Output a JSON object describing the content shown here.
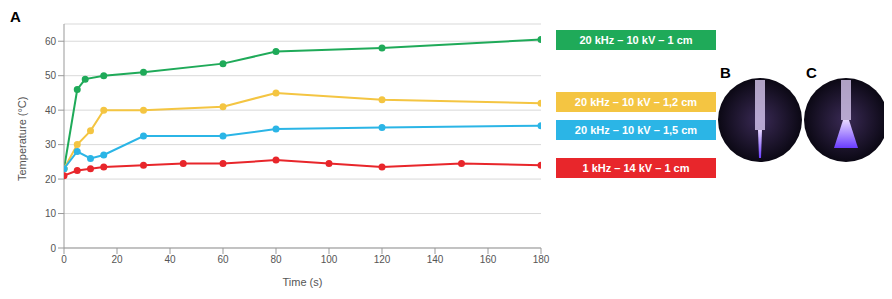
{
  "chart_data": {
    "type": "line",
    "x_label": "Time (s)",
    "y_label": "Temperature (°C)",
    "xlim": [
      0,
      180
    ],
    "xticks": [
      0,
      20,
      40,
      60,
      80,
      100,
      120,
      140,
      160,
      180
    ],
    "ylim": [
      0,
      65
    ],
    "yticks": [
      0,
      10,
      20,
      30,
      40,
      50,
      60
    ],
    "grid": true,
    "legend": "right",
    "marker": "circle",
    "series": [
      {
        "name": "20 kHz – 10 kV – 1 cm",
        "color": "#1faa59",
        "x": [
          0,
          5,
          8,
          15,
          30,
          60,
          80,
          120,
          180
        ],
        "values": [
          23,
          46,
          49,
          50,
          51,
          53.5,
          57,
          58,
          60.5
        ]
      },
      {
        "name": "20 kHz – 10 kV – 1,2 cm",
        "color": "#f4c542",
        "x": [
          0,
          5,
          10,
          15,
          30,
          60,
          80,
          120,
          180
        ],
        "values": [
          23,
          30,
          34,
          40,
          40,
          41,
          45,
          43,
          42
        ]
      },
      {
        "name": "20 kHz – 10 kV – 1,5 cm",
        "color": "#2bb5e6",
        "x": [
          0,
          5,
          10,
          15,
          30,
          60,
          80,
          120,
          180
        ],
        "values": [
          23,
          28,
          26,
          27,
          32.5,
          32.5,
          34.5,
          35,
          35.5
        ]
      },
      {
        "name": "1 kHz – 14 kV – 1 cm",
        "color": "#e8262b",
        "x": [
          0,
          5,
          10,
          15,
          30,
          45,
          60,
          80,
          100,
          120,
          150,
          180
        ],
        "values": [
          21,
          22.5,
          23,
          23.5,
          24,
          24.5,
          24.5,
          25.5,
          24.5,
          23.5,
          24.5,
          24
        ]
      }
    ]
  },
  "panel_labels": [
    "A",
    "B",
    "C"
  ]
}
